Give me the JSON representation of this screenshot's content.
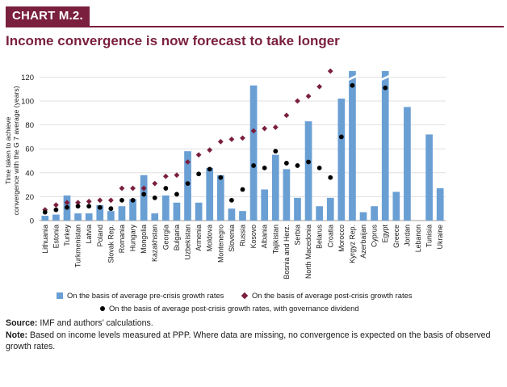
{
  "header": {
    "badge": "CHART M.2.",
    "title": "Income convergence is now forecast to take longer"
  },
  "chart_data": {
    "type": "bar",
    "ylabel": "Time taken to achieve convergence with the G 7 average (years)",
    "ylim": [
      0,
      125
    ],
    "yticks": [
      0,
      20,
      40,
      60,
      80,
      100,
      120
    ],
    "grid": true,
    "legend_position": "bottom",
    "categories": [
      "Lithuania",
      "Estonia",
      "Turkey",
      "Turkmenistan",
      "Latvia",
      "Poland",
      "Slovak Rep.",
      "Romania",
      "Hungary",
      "Mongolia",
      "Kazakhstan",
      "Georgia",
      "Bulgaria",
      "Uzbekistan",
      "Armenia",
      "Moldova",
      "Montenegro",
      "Slovenia",
      "Russia",
      "Kosovo",
      "Albania",
      "Tajikistan",
      "Bosnia and Herz.",
      "Serbia",
      "North Macedonia",
      "Belarus",
      "Croatia",
      "Morocco",
      "Kyrgyz Rep.",
      "Azerbaijan",
      "Cyprus",
      "Egypt",
      "Greece",
      "Jordan",
      "Lebanon",
      "Tunisia",
      "Ukraine"
    ],
    "series": [
      {
        "name": "On the basis of average pre-crisis growth rates",
        "marker": "bar",
        "color": "#6a9fd4",
        "values": [
          4,
          5,
          21,
          6,
          6,
          13,
          8,
          12,
          18,
          38,
          6,
          21,
          15,
          58,
          15,
          44,
          38,
          10,
          8,
          113,
          26,
          55,
          43,
          19,
          83,
          12,
          19,
          102,
          130,
          7,
          12,
          130,
          24,
          95,
          null,
          72,
          27
        ]
      },
      {
        "name": "On the basis of average post-crisis growth rates",
        "marker": "diamond",
        "color": "#7a1f3d",
        "values": [
          9,
          13,
          15,
          15,
          16,
          17,
          17,
          27,
          27,
          27,
          31,
          37,
          38,
          49,
          55,
          59,
          66,
          68,
          69,
          75,
          77,
          78,
          88,
          100,
          104,
          112,
          125,
          null,
          null,
          null,
          null,
          null,
          null,
          null,
          null,
          null,
          null
        ]
      },
      {
        "name": "On the basis of average post-crisis growth rates, with governance dividend",
        "marker": "dot",
        "color": "#000000",
        "values": [
          7,
          9,
          11,
          12,
          12,
          11,
          10,
          17,
          17,
          22,
          19,
          27,
          22,
          31,
          39,
          43,
          36,
          17,
          26,
          46,
          44,
          58,
          48,
          46,
          49,
          44,
          36,
          70,
          113,
          null,
          null,
          111,
          null,
          null,
          null,
          null,
          null
        ]
      }
    ],
    "broken_bars": [
      "Kyrgyz Rep.",
      "Egypt"
    ]
  },
  "notes": {
    "source_label": "Source:",
    "source_text": "IMF and authors’ calculations.",
    "note_label": "Note:",
    "note_text": "Based on income levels measured at PPP. Where data are missing, no convergence is expected on the basis of observed growth rates."
  }
}
